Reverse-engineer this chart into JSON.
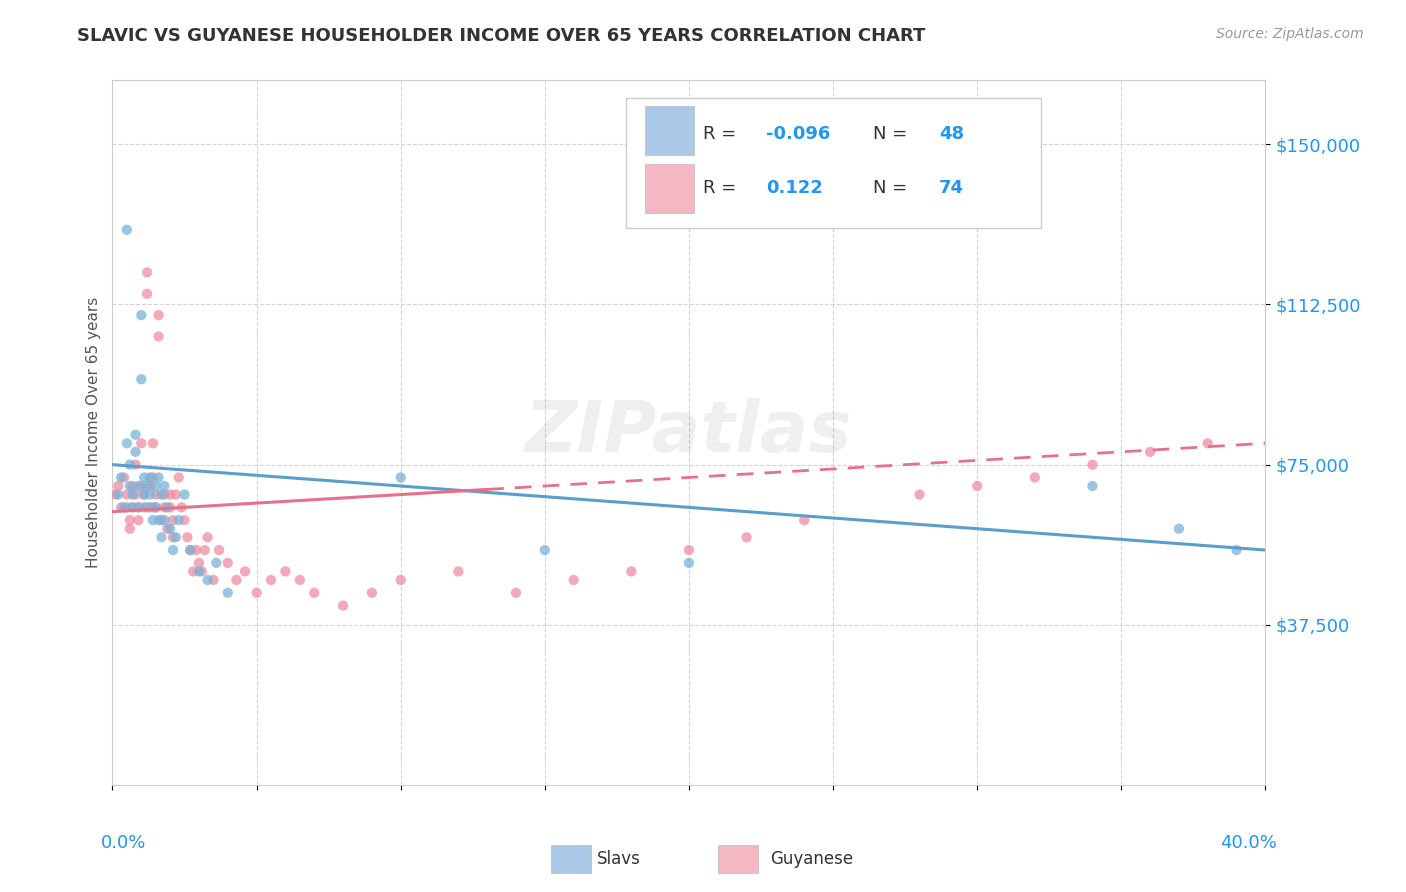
{
  "title": "SLAVIC VS GUYANESE HOUSEHOLDER INCOME OVER 65 YEARS CORRELATION CHART",
  "source": "Source: ZipAtlas.com",
  "ylabel": "Householder Income Over 65 years",
  "xlim": [
    0.0,
    0.4
  ],
  "ylim": [
    0,
    165000
  ],
  "yticks": [
    37500,
    75000,
    112500,
    150000
  ],
  "ytick_labels": [
    "$37,500",
    "$75,000",
    "$112,500",
    "$150,000"
  ],
  "background_color": "#ffffff",
  "grid_color": "#d0d0d0",
  "watermark": "ZIPatlas",
  "slavs_color": "#7ab3d9",
  "guyanese_color": "#f08ca0",
  "slavs_legend_color": "#aac8e8",
  "guyanese_legend_color": "#f4b8c4",
  "slavs_R": -0.096,
  "slavs_N": 48,
  "guyanese_R": 0.122,
  "guyanese_N": 74,
  "slavs_x": [
    0.002,
    0.003,
    0.004,
    0.005,
    0.005,
    0.006,
    0.006,
    0.007,
    0.007,
    0.008,
    0.008,
    0.009,
    0.009,
    0.01,
    0.01,
    0.011,
    0.011,
    0.012,
    0.012,
    0.013,
    0.013,
    0.014,
    0.014,
    0.015,
    0.015,
    0.016,
    0.016,
    0.017,
    0.017,
    0.018,
    0.018,
    0.019,
    0.02,
    0.021,
    0.022,
    0.023,
    0.025,
    0.027,
    0.03,
    0.033,
    0.036,
    0.04,
    0.1,
    0.15,
    0.2,
    0.34,
    0.37,
    0.39
  ],
  "slavs_y": [
    68000,
    72000,
    65000,
    130000,
    80000,
    75000,
    70000,
    68000,
    65000,
    82000,
    78000,
    70000,
    65000,
    110000,
    95000,
    72000,
    68000,
    65000,
    70000,
    72000,
    68000,
    65000,
    62000,
    70000,
    65000,
    62000,
    72000,
    68000,
    58000,
    62000,
    70000,
    65000,
    60000,
    55000,
    58000,
    62000,
    68000,
    55000,
    50000,
    48000,
    52000,
    45000,
    72000,
    55000,
    52000,
    70000,
    60000,
    55000
  ],
  "guyanese_x": [
    0.001,
    0.002,
    0.003,
    0.004,
    0.005,
    0.005,
    0.006,
    0.006,
    0.007,
    0.007,
    0.008,
    0.008,
    0.009,
    0.009,
    0.01,
    0.01,
    0.011,
    0.011,
    0.012,
    0.012,
    0.013,
    0.013,
    0.014,
    0.014,
    0.015,
    0.015,
    0.016,
    0.016,
    0.017,
    0.018,
    0.018,
    0.019,
    0.02,
    0.02,
    0.021,
    0.021,
    0.022,
    0.023,
    0.024,
    0.025,
    0.026,
    0.027,
    0.028,
    0.029,
    0.03,
    0.031,
    0.032,
    0.033,
    0.035,
    0.037,
    0.04,
    0.043,
    0.046,
    0.05,
    0.055,
    0.06,
    0.065,
    0.07,
    0.08,
    0.09,
    0.1,
    0.12,
    0.14,
    0.16,
    0.18,
    0.2,
    0.22,
    0.24,
    0.28,
    0.3,
    0.32,
    0.34,
    0.36,
    0.38
  ],
  "guyanese_y": [
    68000,
    70000,
    65000,
    72000,
    68000,
    65000,
    62000,
    60000,
    70000,
    65000,
    68000,
    75000,
    65000,
    62000,
    80000,
    70000,
    68000,
    65000,
    120000,
    115000,
    70000,
    65000,
    80000,
    72000,
    68000,
    65000,
    110000,
    105000,
    62000,
    68000,
    65000,
    60000,
    68000,
    65000,
    62000,
    58000,
    68000,
    72000,
    65000,
    62000,
    58000,
    55000,
    50000,
    55000,
    52000,
    50000,
    55000,
    58000,
    48000,
    55000,
    52000,
    48000,
    50000,
    45000,
    48000,
    50000,
    48000,
    45000,
    42000,
    45000,
    48000,
    50000,
    45000,
    48000,
    50000,
    55000,
    58000,
    62000,
    68000,
    70000,
    72000,
    75000,
    78000,
    80000
  ]
}
